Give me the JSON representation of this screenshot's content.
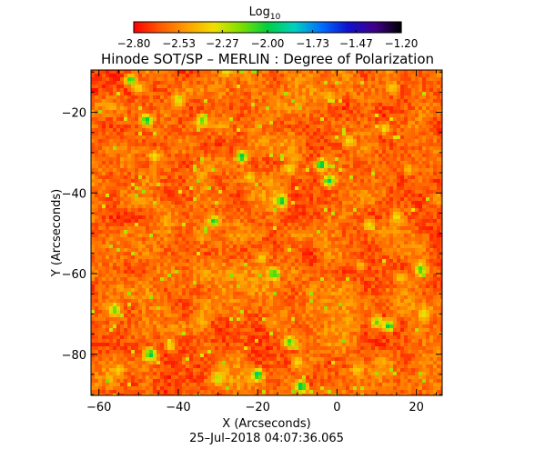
{
  "chart_data": {
    "type": "heatmap",
    "title": "Hinode SOT/SP – MERLIN : Degree of Polarization",
    "xlabel": "X (Arcseconds)",
    "ylabel": "Y (Arcseconds)",
    "timestamp": "25–Jul–2018 04:07:36.065",
    "xlim": [
      -62.0,
      26.5
    ],
    "ylim": [
      -90.2,
      -9.5
    ],
    "x_ticks": [
      -60,
      -40,
      -20,
      0,
      20
    ],
    "x_tick_labels": [
      "−60",
      "−40",
      "−20",
      "0",
      "20"
    ],
    "y_ticks": [
      -20,
      -40,
      -60,
      -80
    ],
    "y_tick_labels": [
      "−20",
      "−40",
      "−60",
      "−80"
    ],
    "colorbar": {
      "label": "Log",
      "label_subscript": "10",
      "range": [
        -2.8,
        -1.2
      ],
      "ticks": [
        -2.8,
        -2.53,
        -2.27,
        -2.0,
        -1.73,
        -1.47,
        -1.2
      ],
      "tick_labels": [
        "−2.80",
        "−2.53",
        "−2.27",
        "−2.00",
        "−1.73",
        "−1.47",
        "−1.20"
      ],
      "colormap": [
        "#ff0000",
        "#ff5a00",
        "#ffa000",
        "#f0e000",
        "#7de000",
        "#00d040",
        "#00d0c0",
        "#0070ff",
        "#1010d0",
        "#40008a",
        "#000000"
      ]
    },
    "field_description_values": {
      "background_level": -2.75,
      "typical_range": [
        -2.8,
        -2.4
      ],
      "peak_level": -1.85
    },
    "features": [
      {
        "x": -52,
        "y": -12,
        "value": -2.0
      },
      {
        "x": -48,
        "y": -22,
        "value": -1.95
      },
      {
        "x": -46,
        "y": -31,
        "value": -2.3
      },
      {
        "x": -40,
        "y": -17,
        "value": -2.25
      },
      {
        "x": -34,
        "y": -22,
        "value": -2.1
      },
      {
        "x": -31,
        "y": -47,
        "value": -2.0
      },
      {
        "x": -24,
        "y": -31,
        "value": -1.95
      },
      {
        "x": -22,
        "y": -36,
        "value": -2.35
      },
      {
        "x": -19,
        "y": -56,
        "value": -2.35
      },
      {
        "x": -16,
        "y": -60,
        "value": -2.0
      },
      {
        "x": -14,
        "y": -42,
        "value": -1.95
      },
      {
        "x": -12,
        "y": -34,
        "value": -2.3
      },
      {
        "x": -12,
        "y": -77,
        "value": -2.05
      },
      {
        "x": -9,
        "y": -88,
        "value": -1.9
      },
      {
        "x": -4,
        "y": -33,
        "value": -1.9
      },
      {
        "x": -2,
        "y": -37,
        "value": -1.95
      },
      {
        "x": 3,
        "y": -27,
        "value": -2.3
      },
      {
        "x": 6,
        "y": -58,
        "value": -2.4
      },
      {
        "x": 8,
        "y": -48,
        "value": -2.3
      },
      {
        "x": 12,
        "y": -24,
        "value": -2.3
      },
      {
        "x": 14,
        "y": -14,
        "value": -2.35
      },
      {
        "x": 15,
        "y": -46,
        "value": -2.3
      },
      {
        "x": 16,
        "y": -61,
        "value": -2.35
      },
      {
        "x": 18,
        "y": -34,
        "value": -2.4
      },
      {
        "x": 21,
        "y": -59,
        "value": -2.05
      },
      {
        "x": 22,
        "y": -70,
        "value": -2.3
      },
      {
        "x": -55,
        "y": -84,
        "value": -2.35
      },
      {
        "x": -47,
        "y": -80,
        "value": -1.95
      },
      {
        "x": -42,
        "y": -78,
        "value": -2.3
      },
      {
        "x": -34,
        "y": -72,
        "value": -2.4
      },
      {
        "x": -30,
        "y": -86,
        "value": -2.2
      },
      {
        "x": -20,
        "y": -85,
        "value": -1.9
      },
      {
        "x": -10,
        "y": -82,
        "value": -2.3
      },
      {
        "x": -56,
        "y": -69,
        "value": -2.1
      },
      {
        "x": -50,
        "y": -14,
        "value": -2.3
      },
      {
        "x": 10,
        "y": -72,
        "value": -2.1
      },
      {
        "x": 13,
        "y": -73,
        "value": -1.95
      },
      {
        "x": 5,
        "y": -84,
        "value": -2.35
      },
      {
        "x": -28,
        "y": -9.8,
        "value": -2.3
      },
      {
        "x": -2,
        "y": -16,
        "value": -2.4
      }
    ]
  }
}
